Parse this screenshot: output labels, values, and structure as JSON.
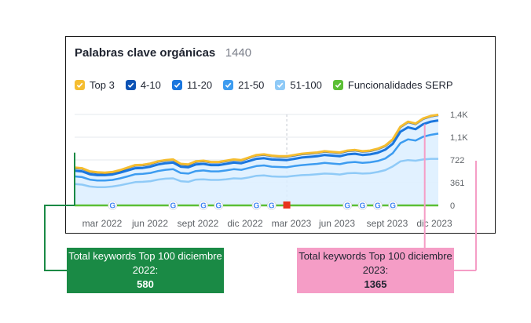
{
  "header": {
    "title": "Palabras clave orgánicas",
    "count": "1440"
  },
  "legend": [
    {
      "label": "Top 3",
      "color": "#f5bd30"
    },
    {
      "label": "4-10",
      "color": "#0c52b4"
    },
    {
      "label": "11-20",
      "color": "#1a76de"
    },
    {
      "label": "21-50",
      "color": "#3d9cf0"
    },
    {
      "label": "51-100",
      "color": "#8fcaf7"
    },
    {
      "label": "Funcionalidades SERP",
      "color": "#5bbf35"
    }
  ],
  "chart_data": {
    "type": "area",
    "y_ticks": [
      "1,4K",
      "1,1K",
      "722",
      "361",
      "0"
    ],
    "ylim": [
      0,
      1444
    ],
    "x_tick_labels": [
      "mar 2022",
      "jun 2022",
      "sept 2022",
      "dic 2022",
      "mar 2023",
      "jun 2023",
      "sept 2023",
      "dic 2023"
    ],
    "grid": true,
    "x_months": [
      0,
      0.5,
      1,
      1.5,
      2,
      2.5,
      3,
      3.5,
      4,
      4.5,
      5,
      5.5,
      6,
      6.5,
      7,
      7.5,
      8,
      8.5,
      9,
      9.5,
      10,
      10.5,
      11,
      11.5,
      12,
      12.5,
      13,
      13.5,
      14,
      14.5,
      15,
      15.5,
      16,
      16.5,
      17,
      17.5,
      18,
      18.5,
      19,
      19.5,
      20,
      20.5,
      21,
      21.5,
      22,
      22.5,
      23,
      23.5,
      24
    ],
    "x_month_origin": "ene 2022",
    "series": [
      {
        "name": "Top 3",
        "values": [
          600,
          590,
          540,
          525,
          520,
          530,
          560,
          600,
          640,
          645,
          665,
          700,
          720,
          730,
          660,
          650,
          700,
          710,
          690,
          690,
          710,
          730,
          720,
          760,
          800,
          810,
          790,
          780,
          780,
          800,
          820,
          830,
          840,
          860,
          850,
          840,
          870,
          880,
          860,
          870,
          900,
          950,
          1050,
          1250,
          1330,
          1300,
          1380,
          1420,
          1440
        ]
      },
      {
        "name": "4-10",
        "values": [
          595,
          585,
          535,
          520,
          515,
          525,
          555,
          595,
          635,
          640,
          660,
          695,
          715,
          725,
          655,
          645,
          695,
          705,
          685,
          685,
          705,
          725,
          715,
          755,
          795,
          805,
          785,
          775,
          775,
          795,
          815,
          825,
          835,
          855,
          845,
          835,
          865,
          875,
          855,
          865,
          895,
          945,
          1045,
          1245,
          1325,
          1295,
          1375,
          1415,
          1435
        ]
      },
      {
        "name": "11-20",
        "values": [
          550,
          540,
          495,
          480,
          480,
          490,
          520,
          555,
          590,
          595,
          615,
          650,
          670,
          680,
          615,
          605,
          650,
          660,
          640,
          640,
          660,
          680,
          670,
          705,
          740,
          750,
          730,
          725,
          720,
          740,
          760,
          770,
          780,
          800,
          790,
          780,
          810,
          820,
          800,
          810,
          835,
          885,
          980,
          1170,
          1240,
          1210,
          1290,
          1330,
          1350
        ]
      },
      {
        "name": "21-50",
        "values": [
          460,
          450,
          410,
          395,
          395,
          405,
          430,
          460,
          495,
          500,
          515,
          545,
          565,
          575,
          515,
          505,
          545,
          555,
          540,
          540,
          555,
          575,
          565,
          595,
          625,
          635,
          615,
          610,
          605,
          625,
          640,
          650,
          660,
          675,
          665,
          655,
          680,
          690,
          675,
          685,
          705,
          745,
          830,
          990,
          1050,
          1030,
          1090,
          1120,
          1140
        ]
      },
      {
        "name": "51-100",
        "values": [
          340,
          330,
          300,
          290,
          290,
          300,
          320,
          345,
          370,
          375,
          385,
          410,
          425,
          430,
          385,
          375,
          410,
          415,
          405,
          405,
          415,
          430,
          425,
          445,
          470,
          475,
          460,
          455,
          455,
          470,
          480,
          485,
          495,
          505,
          500,
          490,
          510,
          515,
          505,
          510,
          530,
          560,
          620,
          700,
          720,
          710,
          730,
          740,
          740
        ]
      },
      {
        "name": "Funcionalidades SERP",
        "values": [
          0,
          0,
          0,
          0,
          0,
          0,
          0,
          0,
          0,
          0,
          0,
          0,
          0,
          0,
          0,
          0,
          0,
          0,
          0,
          0,
          0,
          0,
          0,
          0,
          0,
          0,
          0,
          0,
          0,
          0,
          0,
          0,
          0,
          0,
          0,
          0,
          0,
          0,
          0,
          0,
          0,
          0,
          0,
          0,
          0,
          0,
          0,
          0,
          0
        ]
      }
    ],
    "serp_markers": [
      {
        "x": 2.5,
        "kind": "google"
      },
      {
        "x": 6.5,
        "kind": "google"
      },
      {
        "x": 8.5,
        "kind": "google"
      },
      {
        "x": 9.5,
        "kind": "google"
      },
      {
        "x": 12,
        "kind": "google"
      },
      {
        "x": 13,
        "kind": "google"
      },
      {
        "x": 14,
        "kind": "flag"
      },
      {
        "x": 18,
        "kind": "google"
      },
      {
        "x": 19,
        "kind": "google"
      },
      {
        "x": 20,
        "kind": "google"
      },
      {
        "x": 21,
        "kind": "google"
      }
    ],
    "marker_at_x": 14,
    "annotations": [
      {
        "text": "Total keywords Top 100 diciembre 2022:",
        "value": "580",
        "x": 0,
        "color": "#1a8a45"
      },
      {
        "text": "Total keywords Top 100 diciembre 2023:",
        "value": "1365",
        "x": 23,
        "color": "#f59dc6"
      }
    ]
  },
  "callouts": {
    "green_text": "Total keywords Top 100 diciembre 2022:",
    "green_value": "580",
    "pink_text": "Total keywords Top 100 diciembre 2023:",
    "pink_value": "1365"
  }
}
